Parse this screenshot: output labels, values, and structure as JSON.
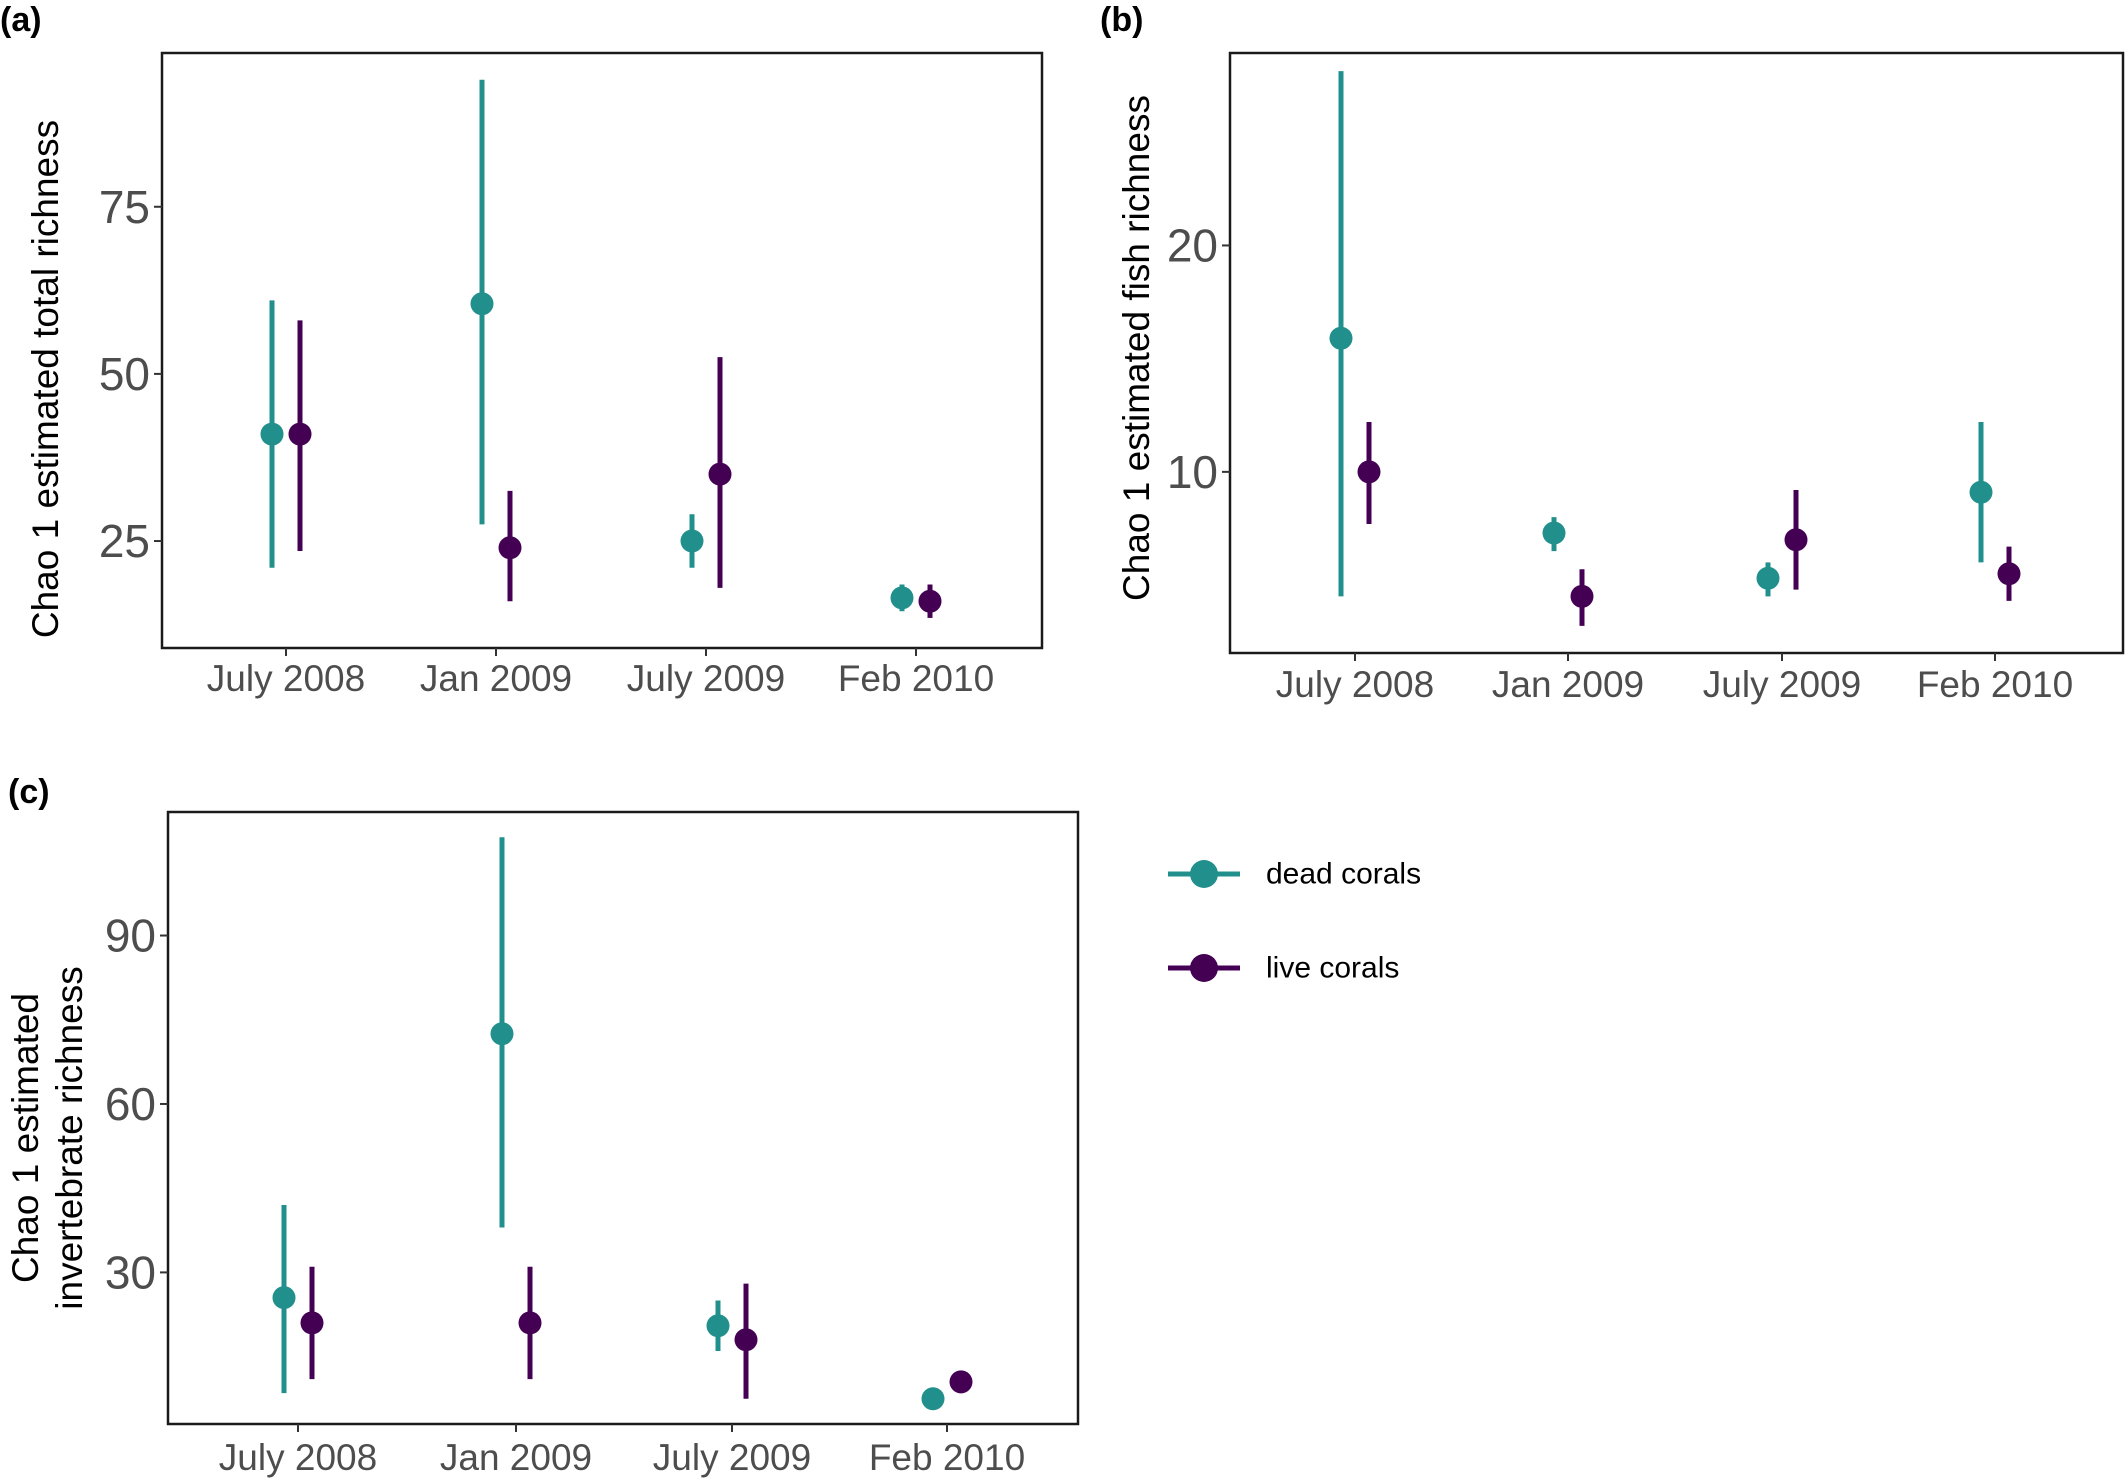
{
  "colors": {
    "dead": "#21908c",
    "live": "#440154"
  },
  "legend": [
    {
      "key": "dead",
      "label": "dead corals"
    },
    {
      "key": "live",
      "label": "live corals"
    }
  ],
  "chart_data": [
    {
      "panel": "(a)",
      "type": "scatter",
      "ylabel": [
        "Chao 1 estimated total richness"
      ],
      "categories": [
        "July 2008",
        "Jan 2009",
        "July 2009",
        "Feb 2010"
      ],
      "ylim": [
        9,
        98
      ],
      "yticks": [
        25,
        50,
        75
      ],
      "grid": false,
      "series": [
        {
          "name": "dead corals",
          "key": "dead",
          "values": [
            41,
            60.5,
            25,
            16.5
          ],
          "lower": [
            21,
            27.5,
            21,
            14.5
          ],
          "upper": [
            61,
            94,
            29,
            18.5
          ]
        },
        {
          "name": "live corals",
          "key": "live",
          "values": [
            41,
            24,
            35,
            16
          ],
          "lower": [
            23.5,
            16,
            18,
            13.5
          ],
          "upper": [
            58,
            32.5,
            52.5,
            18.5
          ]
        }
      ]
    },
    {
      "panel": "(b)",
      "type": "scatter",
      "ylabel": [
        "Chao 1 estimated fish richness"
      ],
      "categories": [
        "July 2008",
        "Jan 2009",
        "July 2009",
        "Feb 2010"
      ],
      "ylim": [
        2,
        28.5
      ],
      "yticks": [
        10,
        20
      ],
      "grid": false,
      "series": [
        {
          "name": "dead corals",
          "key": "dead",
          "values": [
            15.9,
            7.3,
            5.3,
            9.1
          ],
          "lower": [
            4.5,
            6.5,
            4.5,
            6.0
          ],
          "upper": [
            27.7,
            8.0,
            6.0,
            12.2
          ]
        },
        {
          "name": "live corals",
          "key": "live",
          "values": [
            10.0,
            4.5,
            7.0,
            5.5
          ],
          "lower": [
            7.7,
            3.2,
            4.8,
            4.3
          ],
          "upper": [
            12.2,
            5.7,
            9.2,
            6.7
          ]
        }
      ]
    },
    {
      "panel": "(c)",
      "type": "scatter",
      "ylabel": [
        "Chao 1 estimated",
        "invertebrate richness"
      ],
      "categories": [
        "July 2008",
        "Jan 2009",
        "July 2009",
        "Feb 2010"
      ],
      "ylim": [
        3,
        112
      ],
      "yticks": [
        30,
        60,
        90
      ],
      "grid": false,
      "series": [
        {
          "name": "dead corals",
          "key": "dead",
          "values": [
            25.5,
            72.5,
            20.5,
            7.5
          ],
          "lower": [
            8.5,
            38,
            16,
            7.5
          ],
          "upper": [
            42,
            107.5,
            25,
            7.5
          ]
        },
        {
          "name": "live corals",
          "key": "live",
          "values": [
            21,
            21,
            18,
            10.5
          ],
          "lower": [
            11,
            11,
            7.5,
            8.5
          ],
          "upper": [
            31,
            31,
            28,
            12.5
          ]
        }
      ]
    }
  ]
}
